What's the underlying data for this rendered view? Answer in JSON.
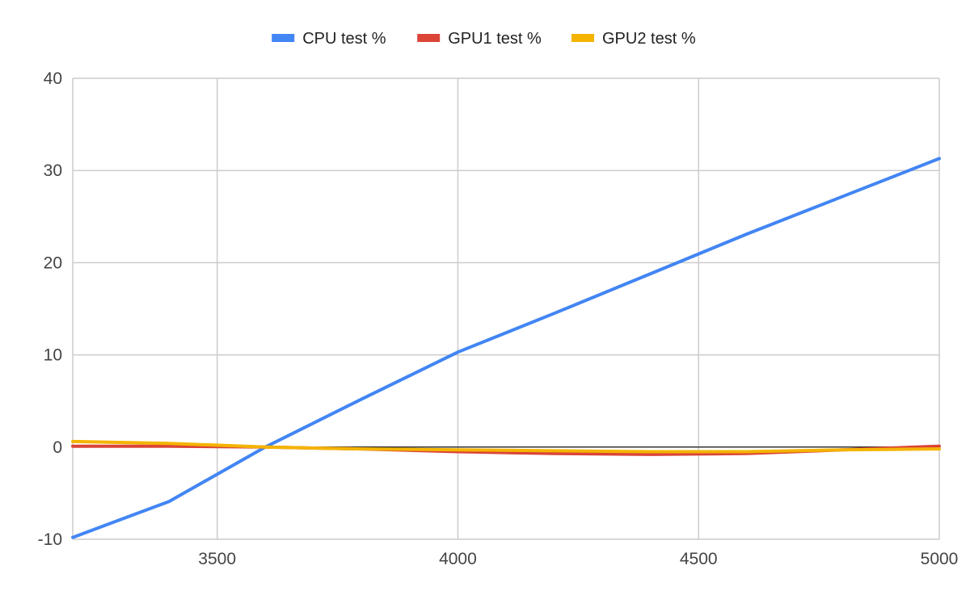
{
  "chart_data": {
    "type": "line",
    "title": "",
    "xlabel": "",
    "ylabel": "",
    "xlim": [
      3200,
      5000
    ],
    "ylim": [
      -10,
      40
    ],
    "x_ticks": [
      3500,
      4000,
      4500,
      5000
    ],
    "y_ticks": [
      -10,
      0,
      10,
      20,
      30,
      40
    ],
    "x_tick_labels": [
      "3500",
      "4000",
      "4500",
      "5000"
    ],
    "y_tick_labels": [
      "-10",
      "0",
      "10",
      "20",
      "30",
      "40"
    ],
    "grid": true,
    "legend_position": "top-center",
    "series": [
      {
        "name": "CPU test %",
        "color": "#4285F4",
        "points": [
          [
            3200,
            -9.8
          ],
          [
            3400,
            -5.9
          ],
          [
            3600,
            0.0
          ],
          [
            3800,
            5.2
          ],
          [
            4000,
            10.3
          ],
          [
            4200,
            14.5
          ],
          [
            4400,
            18.8
          ],
          [
            4600,
            23.1
          ],
          [
            4800,
            27.2
          ],
          [
            5000,
            31.3
          ]
        ]
      },
      {
        "name": "GPU1 test %",
        "color": "#DB4437",
        "points": [
          [
            3200,
            0.1
          ],
          [
            3400,
            0.1
          ],
          [
            3600,
            0.0
          ],
          [
            3800,
            -0.2
          ],
          [
            4000,
            -0.5
          ],
          [
            4200,
            -0.7
          ],
          [
            4400,
            -0.8
          ],
          [
            4600,
            -0.7
          ],
          [
            4800,
            -0.3
          ],
          [
            5000,
            0.1
          ]
        ]
      },
      {
        "name": "GPU2 test %",
        "color": "#F4B400",
        "points": [
          [
            3200,
            0.6
          ],
          [
            3400,
            0.4
          ],
          [
            3600,
            0.0
          ],
          [
            3800,
            -0.2
          ],
          [
            4000,
            -0.3
          ],
          [
            4200,
            -0.4
          ],
          [
            4400,
            -0.5
          ],
          [
            4600,
            -0.5
          ],
          [
            4800,
            -0.3
          ],
          [
            5000,
            -0.2
          ]
        ]
      }
    ]
  }
}
